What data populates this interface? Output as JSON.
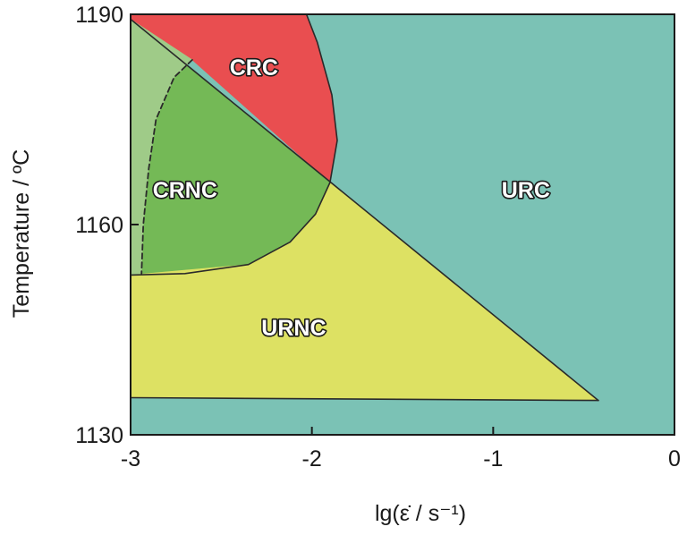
{
  "chart_data": {
    "type": "area",
    "title": "",
    "xlabel": "lg(ε̇ / s⁻¹)",
    "ylabel": "Temperature / ºC",
    "xlim": [
      -3,
      0
    ],
    "ylim": [
      1130,
      1190
    ],
    "x_ticks": [
      -3,
      -2,
      -1,
      0
    ],
    "y_ticks": [
      1130,
      1160,
      1190
    ],
    "x_tick_labels": [
      "-3",
      "-2",
      "-1",
      "0"
    ],
    "y_tick_labels": [
      "1130",
      "1160",
      "1190"
    ],
    "grid": false,
    "legend": "none",
    "colors": {
      "URC": "#7bc2b5",
      "CRC": "#e94e50",
      "CRNC": "#74b956",
      "CRNC_light": "#9fcb88",
      "URNC": "#dde163",
      "boundary": "#2a2a2a"
    },
    "regions": [
      {
        "name": "URC",
        "label": "URC",
        "label_at": [
          -0.82,
          1165
        ],
        "boundary": [
          [
            -3,
            1130
          ],
          [
            0,
            1130
          ],
          [
            0,
            1190
          ],
          [
            -3,
            1190
          ]
        ]
      },
      {
        "name": "CRC",
        "label": "CRC",
        "label_at": [
          -2.32,
          1182.5
        ],
        "boundary": [
          [
            -3,
            1190
          ],
          [
            -2.03,
            1190
          ],
          [
            -1.97,
            1186
          ],
          [
            -1.89,
            1178.5
          ],
          [
            -1.86,
            1172
          ],
          [
            -1.9,
            1166
          ],
          [
            -2.66,
            1183.5
          ],
          [
            -3,
            1189.3
          ]
        ]
      },
      {
        "name": "CRNC",
        "label": "CRNC",
        "label_at": [
          -2.7,
          1165
        ],
        "boundary": [
          [
            -3,
            1189.3
          ],
          [
            -1.9,
            1166
          ],
          [
            -1.98,
            1161.5
          ],
          [
            -2.12,
            1157.5
          ],
          [
            -2.35,
            1154.3
          ],
          [
            -2.7,
            1153
          ],
          [
            -2.98,
            1152.8
          ],
          [
            -3,
            1152.8
          ]
        ]
      },
      {
        "name": "CRNC_light",
        "boundary": [
          [
            -3,
            1189.3
          ],
          [
            -2.66,
            1183.5
          ],
          [
            -2.76,
            1181
          ],
          [
            -2.86,
            1175
          ],
          [
            -2.9,
            1168
          ],
          [
            -2.93,
            1160
          ],
          [
            -2.94,
            1153
          ],
          [
            -3,
            1152.8
          ]
        ]
      },
      {
        "name": "URNC",
        "label": "URNC",
        "label_at": [
          -2.1,
          1145.3
        ],
        "boundary": [
          [
            -3,
            1152.8
          ],
          [
            -2.35,
            1154.3
          ],
          [
            -2.12,
            1157.5
          ],
          [
            -1.98,
            1161.5
          ],
          [
            -1.9,
            1166
          ],
          [
            -0.42,
            1134.9
          ],
          [
            -3,
            1135.3
          ]
        ]
      }
    ],
    "lines": [
      {
        "name": "diagonal boundary",
        "style": "solid",
        "points": [
          [
            -3,
            1189.3
          ],
          [
            -0.42,
            1134.9
          ]
        ]
      },
      {
        "name": "CRC curve",
        "style": "solid",
        "points": [
          [
            -2.03,
            1190
          ],
          [
            -1.97,
            1186
          ],
          [
            -1.89,
            1178.5
          ],
          [
            -1.86,
            1172
          ],
          [
            -1.9,
            1166
          ]
        ]
      },
      {
        "name": "CRNC lower curve",
        "style": "solid",
        "points": [
          [
            -1.9,
            1166
          ],
          [
            -1.98,
            1161.5
          ],
          [
            -2.12,
            1157.5
          ],
          [
            -2.35,
            1154.3
          ],
          [
            -2.7,
            1153
          ],
          [
            -3,
            1152.8
          ]
        ]
      },
      {
        "name": "URNC bottom",
        "style": "solid",
        "points": [
          [
            -3,
            1135.3
          ],
          [
            -0.42,
            1134.9
          ]
        ]
      },
      {
        "name": "dashed boundary",
        "style": "dashed",
        "points": [
          [
            -2.66,
            1183.5
          ],
          [
            -2.76,
            1181
          ],
          [
            -2.86,
            1175
          ],
          [
            -2.9,
            1168
          ],
          [
            -2.93,
            1160
          ],
          [
            -2.94,
            1153
          ]
        ]
      }
    ]
  }
}
